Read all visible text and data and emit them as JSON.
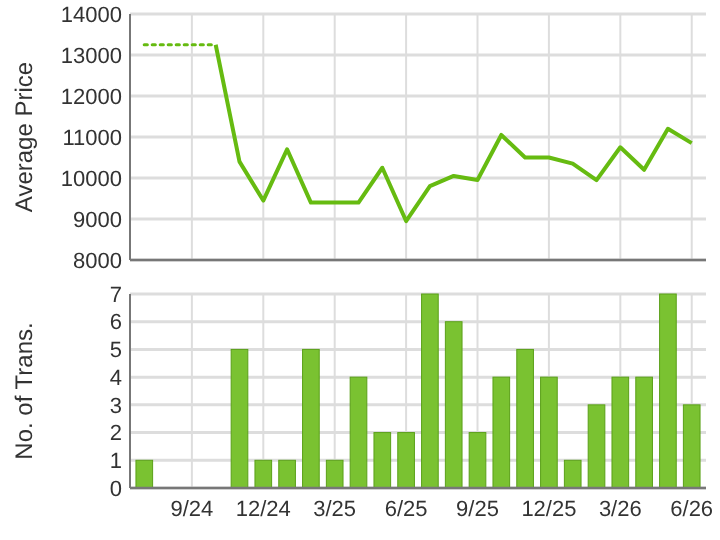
{
  "chart_data": [
    {
      "type": "line",
      "ylabel": "Average Price",
      "categories": [
        null,
        null,
        null,
        null,
        null,
        null,
        null,
        null,
        null,
        null,
        null,
        null,
        null,
        null,
        null,
        null,
        null,
        null,
        null,
        null,
        null,
        null,
        null,
        null
      ],
      "series": [
        {
          "color": "#66bb11",
          "line_style": "dotted",
          "values": [
            13250,
            13250,
            13250,
            13250,
            null,
            null,
            null,
            null,
            null,
            null,
            null,
            null,
            null,
            null,
            null,
            null,
            null,
            null,
            null,
            null,
            null,
            null,
            null,
            null
          ]
        },
        {
          "color": "#66bb11",
          "line_style": "solid",
          "values": [
            null,
            null,
            null,
            13250,
            10400,
            9450,
            10700,
            9400,
            9400,
            9400,
            10250,
            8950,
            9800,
            10050,
            9950,
            11050,
            10500,
            10500,
            10350,
            9950,
            10750,
            10200,
            11200,
            10850
          ]
        }
      ],
      "ylim": [
        8000,
        14000
      ],
      "yticks": [
        8000,
        9000,
        10000,
        11000,
        12000,
        13000,
        14000
      ],
      "grid": true,
      "tick_labels": "y",
      "marker": "none"
    },
    {
      "type": "bar",
      "ylabel": "No. of Trans.",
      "categories": [
        null,
        null,
        "9/24",
        null,
        null,
        "12/24",
        null,
        null,
        "3/25",
        null,
        null,
        "6/25",
        null,
        null,
        "9/25",
        null,
        null,
        "12/25",
        null,
        null,
        "3/26",
        null,
        null,
        "6/26"
      ],
      "values": [
        1,
        0,
        0,
        0,
        5,
        1,
        1,
        5,
        1,
        4,
        2,
        2,
        7,
        6,
        2,
        4,
        5,
        4,
        1,
        3,
        4,
        4,
        7,
        3
      ],
      "color": "#7ac231",
      "ylim": [
        0,
        7
      ],
      "yticks": [
        0,
        1,
        2,
        3,
        4,
        5,
        6,
        7
      ],
      "grid": true
    }
  ]
}
